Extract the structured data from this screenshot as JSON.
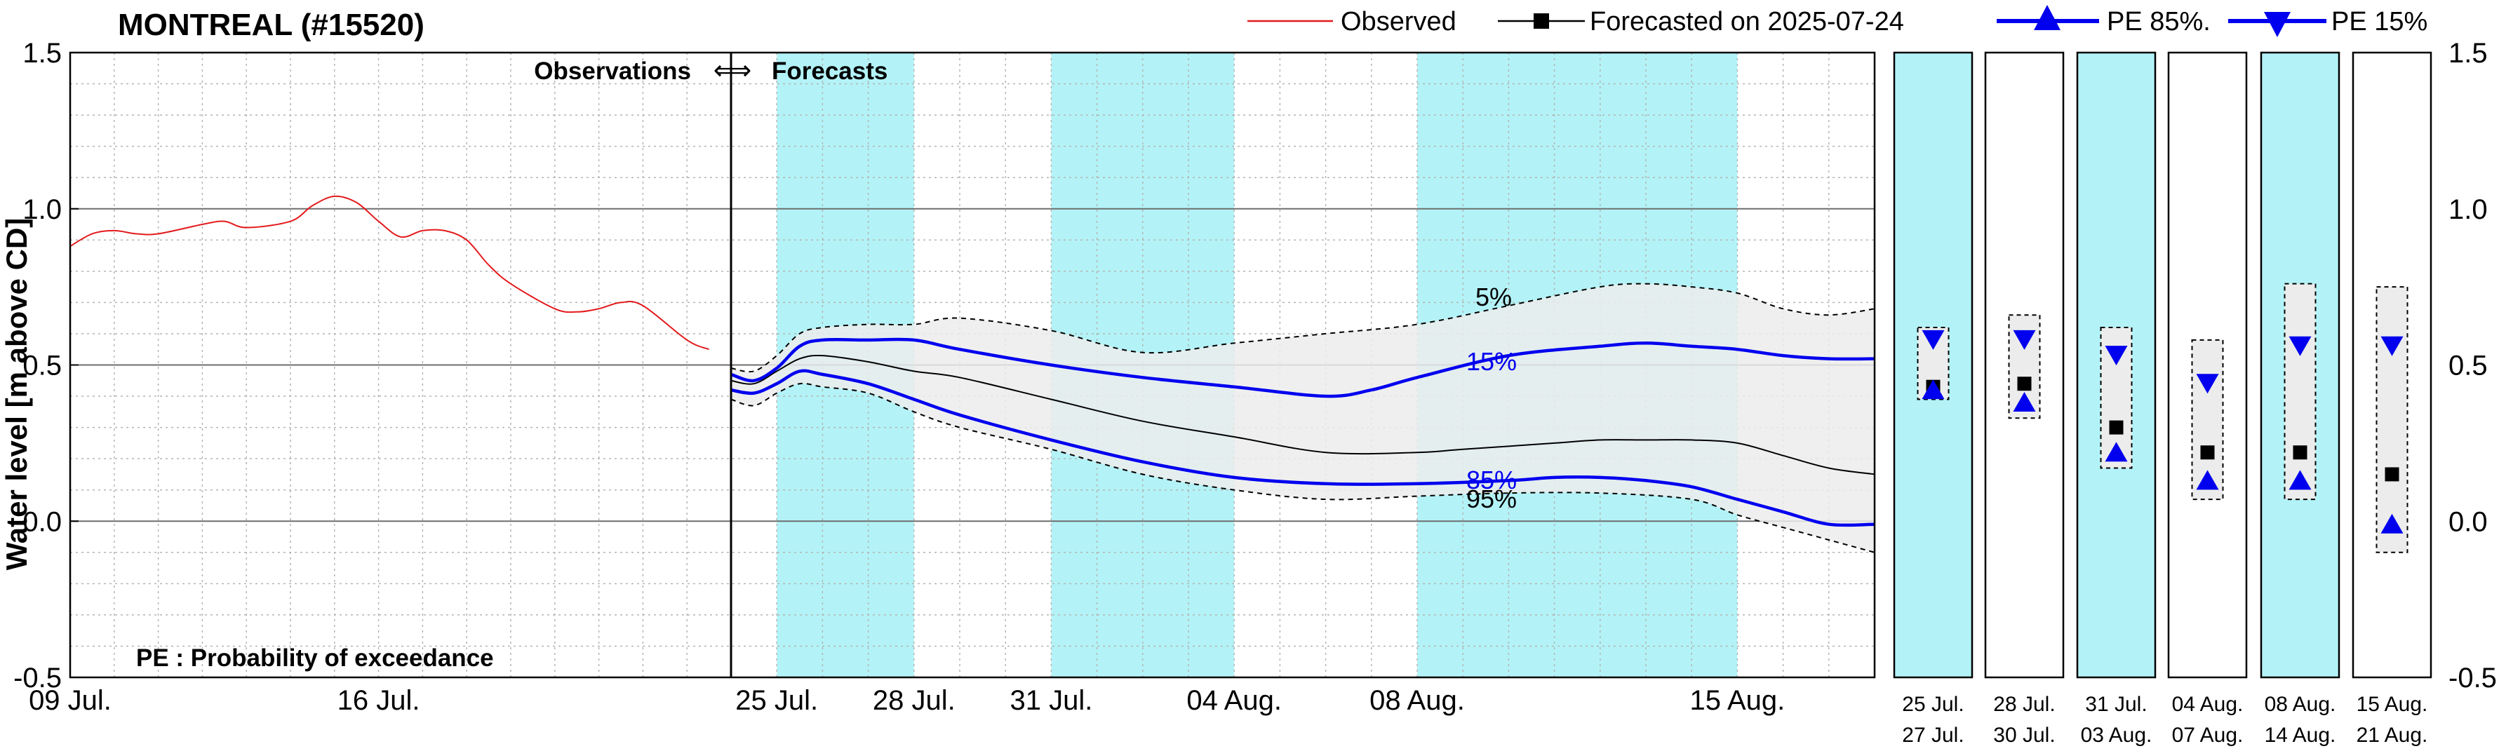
{
  "chart_data": {
    "type": "line",
    "title": "MONTREAL (#15520)",
    "ylabel": "Water level [m above CD]",
    "ylim": [
      -0.5,
      1.5
    ],
    "yticks": [
      -0.5,
      0.0,
      0.5,
      1.0,
      1.5
    ],
    "ytick_labels": [
      "-0.5",
      "0.0",
      "0.5",
      "1.0",
      "1.5"
    ],
    "date_axis": {
      "start": "2025-07-09",
      "end": "2025-08-18",
      "tick_days": [
        0,
        7,
        16,
        19,
        22,
        26,
        30,
        37
      ],
      "tick_labels": [
        "09 Jul.",
        "16 Jul.",
        "25 Jul.",
        "28 Jul.",
        "31 Jul.",
        "04 Aug.",
        "08 Aug.",
        "15 Aug."
      ]
    },
    "divider_day": 15,
    "shaded_periods": [
      [
        16,
        19
      ],
      [
        22,
        26
      ],
      [
        30,
        37
      ]
    ],
    "annotations": {
      "obs_label": "Observations",
      "fcst_label": "Forecasts",
      "arrow": "⟺",
      "pe_note": "PE : Probability of exceedance",
      "lbl_5": "5%",
      "lbl_15": "15%",
      "lbl_85": "85%",
      "lbl_95": "95%"
    },
    "legend": {
      "observed": "Observed",
      "forecasted": "Forecasted on 2025-07-24",
      "pe85": "PE 85%.",
      "pe15": "PE 15%"
    },
    "series": {
      "observed": {
        "name": "Observed",
        "color": "#e31a1c",
        "day": [
          0,
          0.5,
          1,
          1.5,
          2,
          3,
          3.5,
          4,
          5,
          5.5,
          6,
          6.5,
          7,
          7.5,
          8,
          8.5,
          9,
          9.5,
          10,
          11,
          11.5,
          12,
          12.5,
          13,
          14,
          14.5
        ],
        "value": [
          0.88,
          0.92,
          0.93,
          0.92,
          0.92,
          0.95,
          0.96,
          0.94,
          0.96,
          1.01,
          1.04,
          1.02,
          0.96,
          0.91,
          0.93,
          0.93,
          0.9,
          0.82,
          0.76,
          0.68,
          0.67,
          0.68,
          0.7,
          0.69,
          0.58,
          0.55
        ]
      },
      "median": {
        "name": "Forecasted",
        "color": "#000000",
        "day": [
          15,
          15.5,
          16,
          16.5,
          17,
          18,
          19,
          20,
          22,
          24,
          26,
          28,
          30,
          31,
          33,
          34,
          35,
          36,
          37,
          38,
          39,
          40
        ],
        "value": [
          0.45,
          0.44,
          0.48,
          0.52,
          0.53,
          0.51,
          0.48,
          0.46,
          0.39,
          0.32,
          0.27,
          0.22,
          0.22,
          0.23,
          0.25,
          0.26,
          0.26,
          0.26,
          0.25,
          0.21,
          0.17,
          0.15
        ]
      },
      "pe5": {
        "name": "5%",
        "day": [
          15,
          15.5,
          16,
          16.5,
          17,
          18,
          19,
          20,
          22,
          24,
          26,
          28,
          30,
          32,
          34,
          35,
          36,
          37,
          38,
          39,
          40
        ],
        "value": [
          0.49,
          0.48,
          0.53,
          0.6,
          0.62,
          0.63,
          0.63,
          0.65,
          0.61,
          0.54,
          0.57,
          0.6,
          0.63,
          0.69,
          0.75,
          0.76,
          0.75,
          0.73,
          0.68,
          0.66,
          0.68
        ]
      },
      "pe15": {
        "name": "15%",
        "color": "#0000ee",
        "day": [
          15,
          15.5,
          16,
          16.5,
          17,
          18,
          19,
          20,
          22,
          24,
          26,
          28,
          29,
          30,
          32,
          34,
          35,
          36,
          37,
          38,
          39,
          40
        ],
        "value": [
          0.47,
          0.45,
          0.49,
          0.56,
          0.58,
          0.58,
          0.58,
          0.55,
          0.5,
          0.46,
          0.43,
          0.4,
          0.42,
          0.46,
          0.53,
          0.56,
          0.57,
          0.56,
          0.55,
          0.53,
          0.52,
          0.52
        ]
      },
      "pe85": {
        "name": "85%",
        "color": "#0000ee",
        "day": [
          15,
          15.5,
          16,
          16.5,
          17,
          18,
          19,
          20,
          22,
          24,
          26,
          28,
          30,
          32,
          33,
          34,
          35,
          36,
          37,
          38,
          39,
          40
        ],
        "value": [
          0.42,
          0.41,
          0.44,
          0.48,
          0.47,
          0.44,
          0.39,
          0.34,
          0.26,
          0.19,
          0.14,
          0.12,
          0.12,
          0.13,
          0.14,
          0.14,
          0.13,
          0.11,
          0.07,
          0.03,
          -0.01,
          -0.01
        ]
      },
      "pe95": {
        "name": "95%",
        "day": [
          15,
          15.5,
          16,
          16.5,
          17,
          18,
          19,
          20,
          22,
          24,
          26,
          28,
          30,
          32,
          34,
          36,
          37,
          38,
          39,
          40
        ],
        "value": [
          0.39,
          0.37,
          0.41,
          0.44,
          0.43,
          0.41,
          0.35,
          0.3,
          0.23,
          0.15,
          0.1,
          0.07,
          0.08,
          0.09,
          0.09,
          0.07,
          0.02,
          -0.02,
          -0.06,
          -0.1
        ]
      }
    },
    "weekly_panels": [
      {
        "start": "25 Jul.",
        "end": "27 Jul.",
        "shaded": true,
        "median": 0.43,
        "pe15": 0.58,
        "pe85": 0.42,
        "max": 0.62,
        "min": 0.39
      },
      {
        "start": "28 Jul.",
        "end": "30 Jul.",
        "shaded": false,
        "median": 0.44,
        "pe15": 0.58,
        "pe85": 0.38,
        "max": 0.66,
        "min": 0.33
      },
      {
        "start": "31 Jul.",
        "end": "03 Aug.",
        "shaded": true,
        "median": 0.3,
        "pe15": 0.53,
        "pe85": 0.22,
        "max": 0.62,
        "min": 0.17
      },
      {
        "start": "04 Aug.",
        "end": "07 Aug.",
        "shaded": false,
        "median": 0.22,
        "pe15": 0.44,
        "pe85": 0.13,
        "max": 0.58,
        "min": 0.07
      },
      {
        "start": "08 Aug.",
        "end": "14 Aug.",
        "shaded": true,
        "median": 0.22,
        "pe15": 0.56,
        "pe85": 0.13,
        "max": 0.76,
        "min": 0.07
      },
      {
        "start": "15 Aug.",
        "end": "21 Aug.",
        "shaded": false,
        "median": 0.15,
        "pe15": 0.56,
        "pe85": -0.01,
        "max": 0.75,
        "min": -0.1
      }
    ],
    "colors": {
      "shade": "#b3f3f7",
      "band": "#ececec",
      "observed": "#e31a1c",
      "pe": "#0000ee",
      "median": "#000000"
    }
  }
}
